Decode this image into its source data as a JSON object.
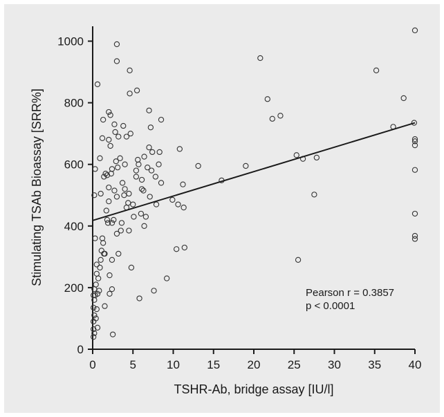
{
  "chart_data": {
    "type": "scatter",
    "title": "",
    "xlabel": "TSHR-Ab, bridge assay [IU/l]",
    "ylabel": "Stimulating TSAb Bioassay [SRR%]",
    "xlim": [
      0,
      40
    ],
    "ylim": [
      0,
      1050
    ],
    "x_ticks": [
      0,
      5,
      10,
      15,
      20,
      25,
      30,
      35,
      40
    ],
    "y_ticks": [
      0,
      200,
      400,
      600,
      800,
      1000
    ],
    "grid": false,
    "marker": "open-circle",
    "colors": {
      "background": "#ebebeb",
      "ink": "#1a1a1a",
      "marker": "#333333"
    },
    "annotations": [
      "Pearson r = 0.3857",
      "p < 0.0001"
    ],
    "regression_line": {
      "x": [
        0,
        40
      ],
      "y": [
        418,
        735
      ]
    },
    "points": [
      [
        0.1,
        40
      ],
      [
        0.1,
        65
      ],
      [
        0.1,
        90
      ],
      [
        0.2,
        110
      ],
      [
        0.1,
        135
      ],
      [
        0.2,
        160
      ],
      [
        0.1,
        175
      ],
      [
        0.2,
        195
      ],
      [
        0.3,
        175
      ],
      [
        0.2,
        52
      ],
      [
        0.4,
        100
      ],
      [
        0.5,
        130
      ],
      [
        0.4,
        210
      ],
      [
        0.5,
        245
      ],
      [
        0.6,
        70
      ],
      [
        0.6,
        180
      ],
      [
        0.7,
        230
      ],
      [
        0.5,
        275
      ],
      [
        0.3,
        360
      ],
      [
        0.2,
        500
      ],
      [
        0.3,
        585
      ],
      [
        0.6,
        860
      ],
      [
        0.8,
        190
      ],
      [
        0.9,
        265
      ],
      [
        1.0,
        290
      ],
      [
        1.0,
        505
      ],
      [
        1.1,
        320
      ],
      [
        1.2,
        360
      ],
      [
        1.3,
        345
      ],
      [
        1.4,
        310
      ],
      [
        1.5,
        140
      ],
      [
        1.2,
        685
      ],
      [
        1.3,
        745
      ],
      [
        1.5,
        310
      ],
      [
        1.6,
        570
      ],
      [
        1.8,
        420
      ],
      [
        1.7,
        450
      ],
      [
        1.9,
        410
      ],
      [
        2.0,
        480
      ],
      [
        2.0,
        525
      ],
      [
        2.0,
        680
      ],
      [
        2.1,
        180
      ],
      [
        2.1,
        240
      ],
      [
        1.8,
        565
      ],
      [
        2.0,
        770
      ],
      [
        2.2,
        660
      ],
      [
        2.2,
        760
      ],
      [
        2.3,
        570
      ],
      [
        2.4,
        195
      ],
      [
        2.4,
        290
      ],
      [
        2.4,
        410
      ],
      [
        2.4,
        585
      ],
      [
        2.5,
        48
      ],
      [
        2.6,
        420
      ],
      [
        2.7,
        730
      ],
      [
        2.7,
        515
      ],
      [
        2.8,
        705
      ],
      [
        3.0,
        375
      ],
      [
        3.0,
        495
      ],
      [
        3.1,
        590
      ],
      [
        3.0,
        990
      ],
      [
        3.0,
        935
      ],
      [
        3.2,
        310
      ],
      [
        3.2,
        690
      ],
      [
        3.4,
        620
      ],
      [
        3.5,
        385
      ],
      [
        3.6,
        410
      ],
      [
        3.7,
        540
      ],
      [
        3.9,
        500
      ],
      [
        3.8,
        725
      ],
      [
        4.0,
        520
      ],
      [
        4.0,
        600
      ],
      [
        4.2,
        690
      ],
      [
        4.2,
        460
      ],
      [
        4.4,
        475
      ],
      [
        4.5,
        505
      ],
      [
        4.5,
        385
      ],
      [
        4.6,
        905
      ],
      [
        4.6,
        830
      ],
      [
        4.7,
        700
      ],
      [
        4.8,
        265
      ],
      [
        5.0,
        470
      ],
      [
        5.1,
        430
      ],
      [
        5.4,
        560
      ],
      [
        5.4,
        580
      ],
      [
        5.5,
        840
      ],
      [
        5.6,
        615
      ],
      [
        5.7,
        600
      ],
      [
        5.8,
        165
      ],
      [
        6.0,
        440
      ],
      [
        6.1,
        520
      ],
      [
        6.1,
        550
      ],
      [
        6.3,
        515
      ],
      [
        6.4,
        625
      ],
      [
        6.4,
        400
      ],
      [
        6.6,
        430
      ],
      [
        6.8,
        590
      ],
      [
        7.0,
        775
      ],
      [
        7.0,
        655
      ],
      [
        7.1,
        495
      ],
      [
        7.2,
        720
      ],
      [
        7.3,
        580
      ],
      [
        7.4,
        640
      ],
      [
        7.6,
        190
      ],
      [
        7.8,
        560
      ],
      [
        7.9,
        470
      ],
      [
        8.2,
        600
      ],
      [
        8.3,
        640
      ],
      [
        8.5,
        745
      ],
      [
        8.5,
        540
      ],
      [
        9.2,
        230
      ],
      [
        9.9,
        485
      ],
      [
        10.4,
        325
      ],
      [
        10.6,
        470
      ],
      [
        10.8,
        650
      ],
      [
        11.2,
        535
      ],
      [
        11.3,
        460
      ],
      [
        11.4,
        330
      ],
      [
        13.1,
        595
      ],
      [
        16.0,
        548
      ],
      [
        19.0,
        595
      ],
      [
        20.8,
        945
      ],
      [
        21.7,
        812
      ],
      [
        22.3,
        748
      ],
      [
        23.3,
        758
      ],
      [
        25.3,
        630
      ],
      [
        25.5,
        290
      ],
      [
        26.1,
        618
      ],
      [
        27.5,
        502
      ],
      [
        27.8,
        622
      ],
      [
        35.2,
        905
      ],
      [
        37.3,
        722
      ],
      [
        38.6,
        815
      ],
      [
        39.9,
        735
      ],
      [
        40.0,
        682
      ],
      [
        40.0,
        662
      ],
      [
        40.0,
        675
      ],
      [
        40.0,
        582
      ],
      [
        40.0,
        440
      ],
      [
        40.0,
        368
      ],
      [
        40.0,
        358
      ],
      [
        40.0,
        1035
      ],
      [
        0.9,
        620
      ],
      [
        1.4,
        560
      ],
      [
        2.9,
        610
      ]
    ]
  }
}
